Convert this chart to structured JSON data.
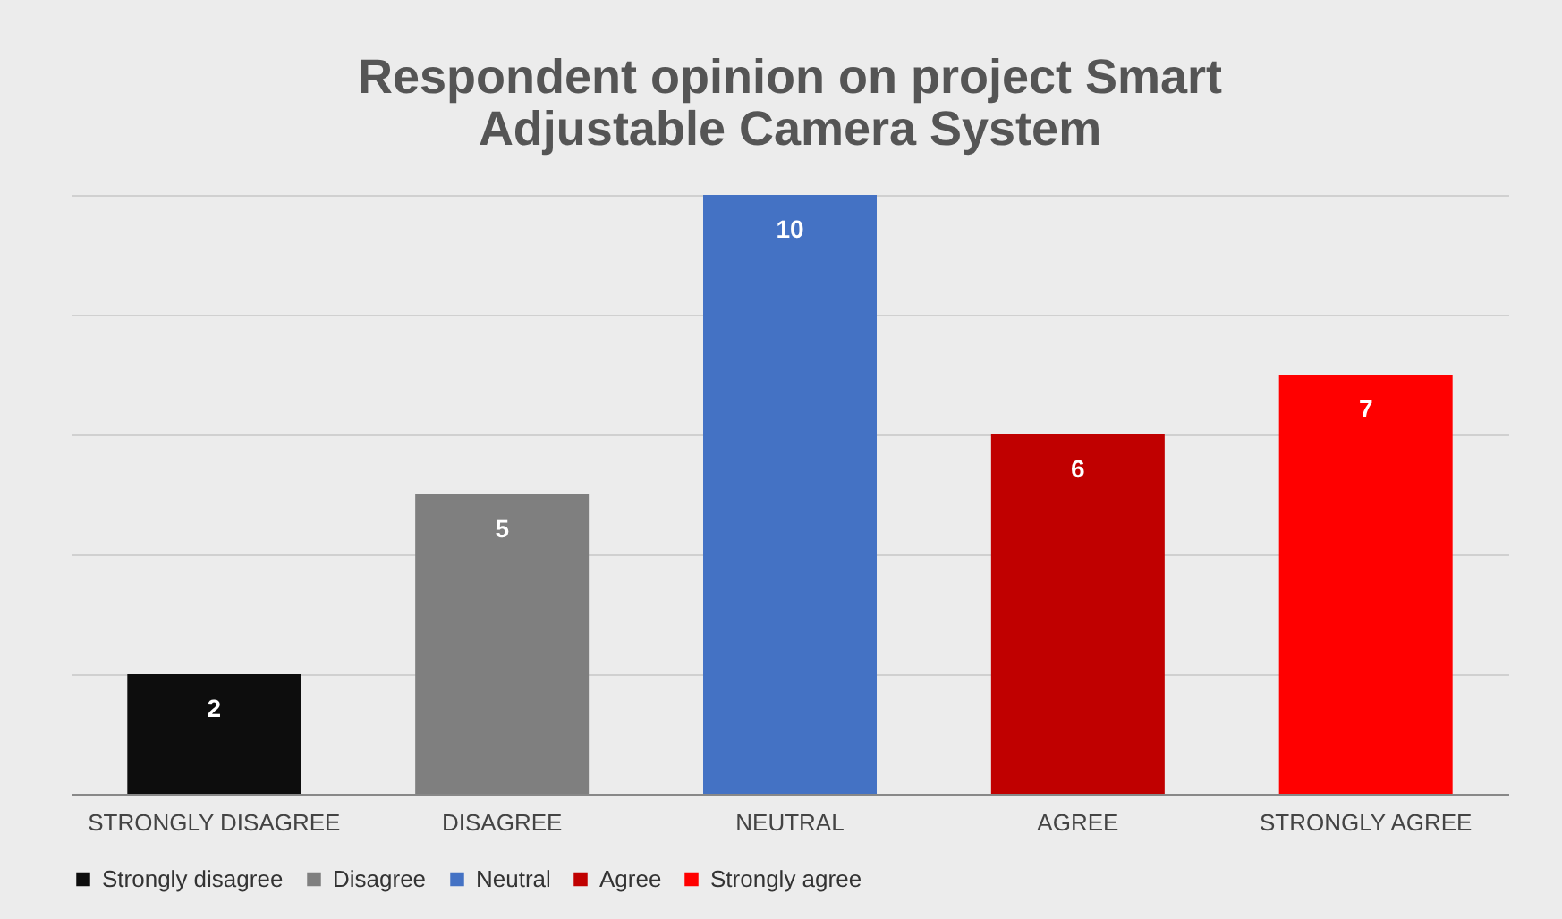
{
  "chart_data": {
    "type": "bar",
    "title": "Respondent opinion on project Smart Adjustable Camera System",
    "categories": [
      "STRONGLY DISAGREE",
      "DISAGREE",
      "NEUTRAL",
      "AGREE",
      "STRONGLY AGREE"
    ],
    "series": [
      {
        "name": "Strongly disagree",
        "color": "#0d0d0d",
        "values": [
          2,
          null,
          null,
          null,
          null
        ]
      },
      {
        "name": "Disagree",
        "color": "#7f7f7f",
        "values": [
          null,
          5,
          null,
          null,
          null
        ]
      },
      {
        "name": "Neutral",
        "color": "#4472c4",
        "values": [
          null,
          null,
          10,
          null,
          null
        ]
      },
      {
        "name": "Agree",
        "color": "#c00000",
        "values": [
          null,
          null,
          null,
          6,
          null
        ]
      },
      {
        "name": "Strongly agree",
        "color": "#ff0000",
        "values": [
          null,
          null,
          null,
          null,
          7
        ]
      }
    ],
    "ylim": [
      0,
      10
    ],
    "yticks": [
      {
        "value": 0,
        "label": null
      },
      {
        "value": 2,
        "label": null
      },
      {
        "value": 4,
        "label": null
      },
      {
        "value": 6,
        "label": null
      },
      {
        "value": 8,
        "label": null
      },
      {
        "value": 10,
        "label": null
      }
    ],
    "grid": "y",
    "tick_labels": "x",
    "data_labels": true,
    "legend": "bottom"
  }
}
